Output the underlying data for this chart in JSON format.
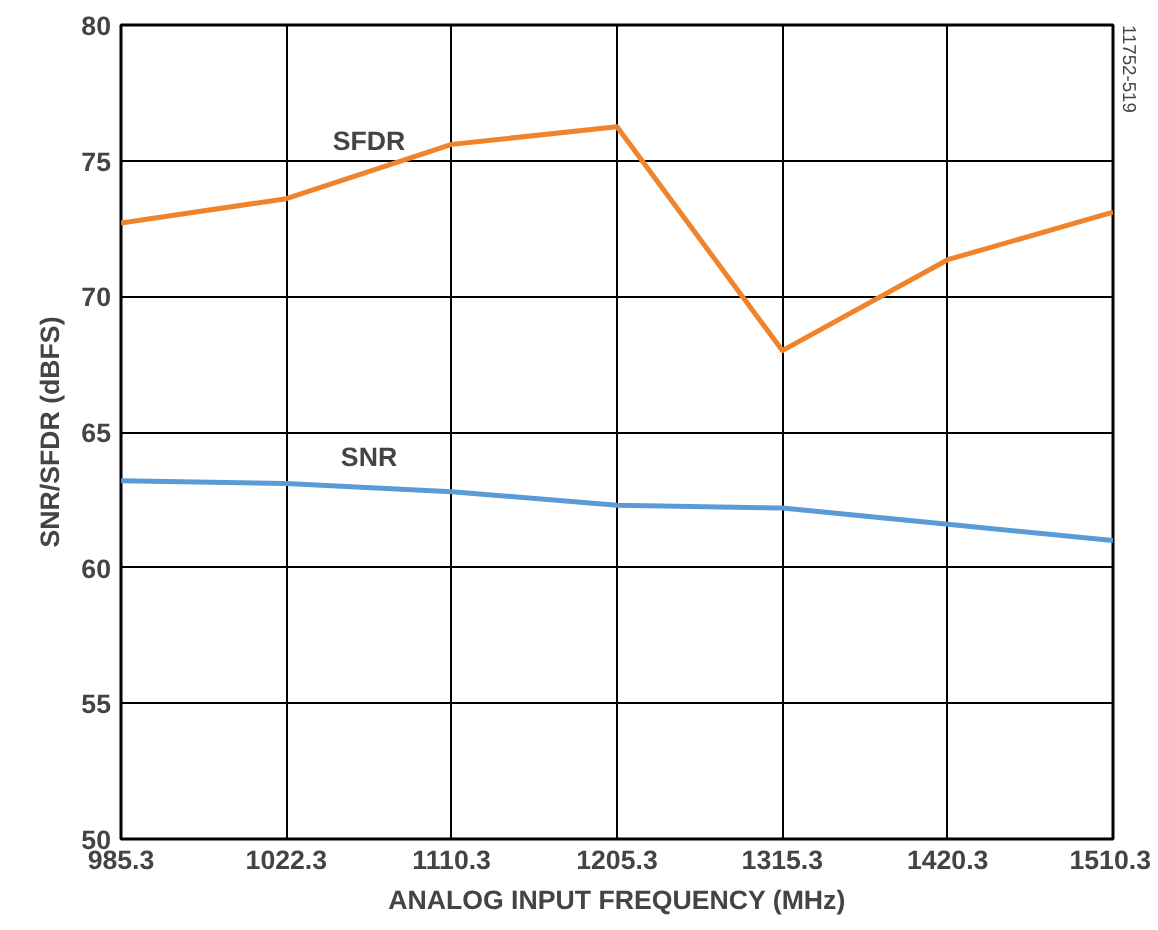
{
  "chart_data": {
    "type": "line",
    "categories": [
      "985.3",
      "1022.3",
      "1110.3",
      "1205.3",
      "1315.3",
      "1420.3",
      "1510.3"
    ],
    "series": [
      {
        "name": "SFDR",
        "color": "#f0842c",
        "values": [
          72.7,
          73.6,
          75.6,
          76.25,
          68.0,
          71.35,
          73.1
        ]
      },
      {
        "name": "SNR",
        "color": "#5b9bd5",
        "values": [
          63.2,
          63.1,
          62.8,
          62.3,
          62.2,
          61.6,
          61.0
        ]
      }
    ],
    "xlabel": "ANALOG INPUT FREQUENCY (MHz)",
    "ylabel": "SNR/SFDR (dBFS)",
    "ylim": [
      50,
      80
    ],
    "yticks": [
      50,
      55,
      60,
      65,
      70,
      75,
      80
    ],
    "grid": true,
    "legend": false,
    "marker": "none",
    "line_style": "solid",
    "annotations": [
      "11752-519"
    ]
  }
}
